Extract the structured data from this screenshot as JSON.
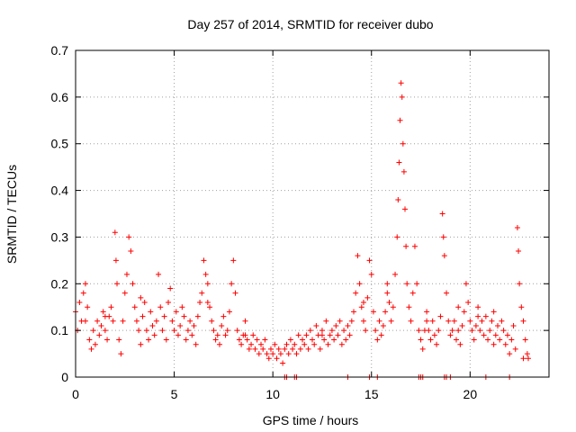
{
  "chart_data": {
    "type": "scatter",
    "title": "Day 257 of 2014, SRMTID for receiver dubo",
    "xlabel": "GPS time / hours",
    "ylabel": "SRMTID / TECUs",
    "xlim": [
      0,
      24
    ],
    "ylim": [
      0,
      0.7
    ],
    "xticks": [
      0,
      5,
      10,
      15,
      20
    ],
    "yticks": [
      0,
      0.1,
      0.2,
      0.3,
      0.4,
      0.5,
      0.6,
      0.7
    ],
    "xtick_labels": [
      "0",
      "5",
      "10",
      "15",
      "20"
    ],
    "ytick_labels": [
      "0",
      "0.1",
      "0.2",
      "0.3",
      "0.4",
      "0.5",
      "0.6",
      "0.7"
    ],
    "grid": true,
    "marker": "+",
    "color": "#ff0000",
    "series": [
      {
        "name": "SRMTID",
        "points": [
          [
            0.0,
            0.14
          ],
          [
            0.1,
            0.1
          ],
          [
            0.2,
            0.16
          ],
          [
            0.3,
            0.12
          ],
          [
            0.4,
            0.18
          ],
          [
            0.5,
            0.2
          ],
          [
            0.6,
            0.15
          ],
          [
            0.7,
            0.08
          ],
          [
            0.8,
            0.06
          ],
          [
            0.9,
            0.1
          ],
          [
            1.0,
            0.07
          ],
          [
            1.1,
            0.12
          ],
          [
            1.2,
            0.09
          ],
          [
            1.3,
            0.11
          ],
          [
            1.4,
            0.14
          ],
          [
            1.5,
            0.1
          ],
          [
            1.6,
            0.08
          ],
          [
            1.7,
            0.13
          ],
          [
            1.8,
            0.15
          ],
          [
            1.9,
            0.12
          ],
          [
            2.0,
            0.31
          ],
          [
            2.05,
            0.25
          ],
          [
            2.1,
            0.2
          ],
          [
            2.2,
            0.08
          ],
          [
            2.3,
            0.05
          ],
          [
            2.4,
            0.12
          ],
          [
            2.5,
            0.18
          ],
          [
            2.6,
            0.22
          ],
          [
            2.7,
            0.3
          ],
          [
            2.8,
            0.27
          ],
          [
            2.9,
            0.2
          ],
          [
            3.0,
            0.15
          ],
          [
            3.1,
            0.12
          ],
          [
            3.2,
            0.1
          ],
          [
            3.3,
            0.07
          ],
          [
            3.4,
            0.13
          ],
          [
            3.5,
            0.16
          ],
          [
            3.6,
            0.1
          ],
          [
            3.7,
            0.08
          ],
          [
            3.8,
            0.14
          ],
          [
            3.9,
            0.11
          ],
          [
            4.0,
            0.09
          ],
          [
            4.1,
            0.12
          ],
          [
            4.2,
            0.22
          ],
          [
            4.3,
            0.15
          ],
          [
            4.4,
            0.1
          ],
          [
            4.5,
            0.13
          ],
          [
            4.6,
            0.08
          ],
          [
            4.7,
            0.16
          ],
          [
            4.8,
            0.19
          ],
          [
            4.9,
            0.12
          ],
          [
            5.0,
            0.1
          ],
          [
            5.1,
            0.14
          ],
          [
            5.2,
            0.09
          ],
          [
            5.3,
            0.11
          ],
          [
            5.4,
            0.15
          ],
          [
            5.5,
            0.13
          ],
          [
            5.6,
            0.08
          ],
          [
            5.7,
            0.1
          ],
          [
            5.8,
            0.12
          ],
          [
            5.9,
            0.09
          ],
          [
            6.0,
            0.11
          ],
          [
            6.1,
            0.07
          ],
          [
            6.2,
            0.13
          ],
          [
            6.3,
            0.16
          ],
          [
            6.4,
            0.18
          ],
          [
            6.5,
            0.25
          ],
          [
            6.6,
            0.22
          ],
          [
            6.7,
            0.2
          ],
          [
            6.8,
            0.15
          ],
          [
            6.9,
            0.12
          ],
          [
            7.0,
            0.1
          ],
          [
            7.1,
            0.08
          ],
          [
            7.2,
            0.09
          ],
          [
            7.3,
            0.07
          ],
          [
            7.4,
            0.11
          ],
          [
            7.5,
            0.13
          ],
          [
            7.6,
            0.09
          ],
          [
            7.7,
            0.1
          ],
          [
            7.8,
            0.14
          ],
          [
            7.9,
            0.2
          ],
          [
            8.0,
            0.25
          ],
          [
            8.1,
            0.18
          ],
          [
            8.2,
            0.1
          ],
          [
            8.3,
            0.08
          ],
          [
            8.4,
            0.07
          ],
          [
            8.5,
            0.09
          ],
          [
            8.6,
            0.12
          ],
          [
            8.7,
            0.08
          ],
          [
            8.8,
            0.06
          ],
          [
            8.9,
            0.07
          ],
          [
            9.0,
            0.09
          ],
          [
            9.1,
            0.06
          ],
          [
            9.2,
            0.08
          ],
          [
            9.3,
            0.05
          ],
          [
            9.4,
            0.07
          ],
          [
            9.5,
            0.06
          ],
          [
            9.6,
            0.08
          ],
          [
            9.7,
            0.05
          ],
          [
            9.8,
            0.04
          ],
          [
            9.9,
            0.06
          ],
          [
            10.0,
            0.05
          ],
          [
            10.1,
            0.07
          ],
          [
            10.2,
            0.04
          ],
          [
            10.3,
            0.06
          ],
          [
            10.4,
            0.05
          ],
          [
            10.5,
            0.03
          ],
          [
            10.6,
            0.06
          ],
          [
            10.7,
            0.07
          ],
          [
            10.8,
            0.05
          ],
          [
            10.9,
            0.08
          ],
          [
            11.0,
            0.06
          ],
          [
            11.1,
            0.07
          ],
          [
            11.2,
            0.05
          ],
          [
            11.3,
            0.09
          ],
          [
            11.4,
            0.06
          ],
          [
            11.5,
            0.08
          ],
          [
            11.6,
            0.07
          ],
          [
            11.7,
            0.09
          ],
          [
            11.8,
            0.06
          ],
          [
            11.9,
            0.1
          ],
          [
            12.0,
            0.08
          ],
          [
            12.1,
            0.07
          ],
          [
            12.2,
            0.11
          ],
          [
            12.3,
            0.09
          ],
          [
            12.4,
            0.06
          ],
          [
            12.5,
            0.1
          ],
          [
            12.6,
            0.08
          ],
          [
            12.7,
            0.12
          ],
          [
            12.8,
            0.07
          ],
          [
            12.9,
            0.09
          ],
          [
            13.0,
            0.1
          ],
          [
            13.1,
            0.08
          ],
          [
            13.2,
            0.11
          ],
          [
            13.3,
            0.09
          ],
          [
            13.4,
            0.12
          ],
          [
            13.5,
            0.07
          ],
          [
            13.6,
            0.1
          ],
          [
            13.7,
            0.08
          ],
          [
            13.8,
            0.11
          ],
          [
            13.9,
            0.09
          ],
          [
            14.0,
            0.12
          ],
          [
            14.1,
            0.14
          ],
          [
            14.2,
            0.18
          ],
          [
            14.3,
            0.26
          ],
          [
            14.4,
            0.2
          ],
          [
            14.5,
            0.15
          ],
          [
            14.6,
            0.12
          ],
          [
            14.7,
            0.1
          ],
          [
            14.8,
            0.17
          ],
          [
            14.9,
            0.25
          ],
          [
            15.0,
            0.22
          ],
          [
            15.1,
            0.14
          ],
          [
            15.2,
            0.1
          ],
          [
            15.3,
            0.08
          ],
          [
            15.4,
            0.12
          ],
          [
            15.5,
            0.09
          ],
          [
            15.6,
            0.11
          ],
          [
            15.7,
            0.14
          ],
          [
            15.8,
            0.2
          ],
          [
            15.9,
            0.16
          ],
          [
            16.0,
            0.12
          ],
          [
            16.1,
            0.15
          ],
          [
            16.2,
            0.22
          ],
          [
            16.3,
            0.3
          ],
          [
            16.35,
            0.38
          ],
          [
            16.4,
            0.46
          ],
          [
            16.45,
            0.55
          ],
          [
            16.5,
            0.63
          ],
          [
            16.55,
            0.6
          ],
          [
            16.6,
            0.5
          ],
          [
            16.65,
            0.44
          ],
          [
            16.7,
            0.36
          ],
          [
            16.75,
            0.28
          ],
          [
            16.8,
            0.2
          ],
          [
            16.9,
            0.15
          ],
          [
            17.0,
            0.12
          ],
          [
            17.1,
            0.18
          ],
          [
            17.2,
            0.28
          ],
          [
            17.3,
            0.2
          ],
          [
            17.4,
            0.1
          ],
          [
            17.5,
            0.08
          ],
          [
            17.6,
            0.06
          ],
          [
            17.7,
            0.1
          ],
          [
            17.8,
            0.14
          ],
          [
            17.9,
            0.1
          ],
          [
            18.0,
            0.08
          ],
          [
            18.1,
            0.12
          ],
          [
            18.2,
            0.09
          ],
          [
            18.3,
            0.07
          ],
          [
            18.4,
            0.1
          ],
          [
            18.5,
            0.13
          ],
          [
            18.6,
            0.35
          ],
          [
            18.65,
            0.3
          ],
          [
            18.7,
            0.26
          ],
          [
            18.8,
            0.18
          ],
          [
            18.9,
            0.12
          ],
          [
            19.0,
            0.09
          ],
          [
            19.1,
            0.1
          ],
          [
            19.2,
            0.12
          ],
          [
            19.3,
            0.08
          ],
          [
            19.4,
            0.1
          ],
          [
            19.5,
            0.07
          ],
          [
            19.6,
            0.11
          ],
          [
            19.7,
            0.14
          ],
          [
            19.8,
            0.2
          ],
          [
            19.9,
            0.16
          ],
          [
            20.0,
            0.12
          ],
          [
            20.1,
            0.1
          ],
          [
            20.2,
            0.08
          ],
          [
            20.3,
            0.11
          ],
          [
            20.4,
            0.15
          ],
          [
            20.5,
            0.1
          ],
          [
            20.6,
            0.12
          ],
          [
            20.7,
            0.09
          ],
          [
            20.8,
            0.13
          ],
          [
            20.9,
            0.08
          ],
          [
            21.0,
            0.1
          ],
          [
            21.1,
            0.12
          ],
          [
            21.2,
            0.07
          ],
          [
            21.3,
            0.09
          ],
          [
            21.4,
            0.11
          ],
          [
            21.5,
            0.08
          ],
          [
            21.6,
            0.12
          ],
          [
            21.7,
            0.1
          ],
          [
            21.8,
            0.07
          ],
          [
            21.9,
            0.09
          ],
          [
            22.0,
            0.05
          ],
          [
            22.1,
            0.08
          ],
          [
            22.2,
            0.11
          ],
          [
            22.3,
            0.06
          ],
          [
            22.4,
            0.32
          ],
          [
            22.45,
            0.27
          ],
          [
            22.5,
            0.2
          ],
          [
            22.6,
            0.15
          ],
          [
            22.7,
            0.12
          ],
          [
            22.8,
            0.08
          ],
          [
            22.9,
            0.05
          ],
          [
            22.95,
            0.04
          ],
          [
            22.7,
            0.04
          ],
          [
            0.5,
            0.12
          ],
          [
            1.5,
            0.13
          ],
          [
            3.3,
            0.17
          ],
          [
            6.7,
            0.16
          ],
          [
            8.6,
            0.09
          ],
          [
            12.5,
            0.09
          ],
          [
            14.6,
            0.16
          ],
          [
            15.8,
            0.18
          ],
          [
            17.8,
            0.12
          ],
          [
            19.4,
            0.15
          ],
          [
            20.4,
            0.13
          ],
          [
            21.2,
            0.14
          ],
          [
            10.6,
            0.0
          ],
          [
            10.7,
            0.0
          ],
          [
            11.1,
            0.0
          ],
          [
            11.2,
            0.0
          ],
          [
            13.8,
            0.0
          ],
          [
            14.9,
            0.0
          ],
          [
            15.3,
            0.0
          ],
          [
            17.4,
            0.0
          ],
          [
            17.5,
            0.0
          ],
          [
            17.6,
            0.0
          ],
          [
            18.7,
            0.0
          ],
          [
            18.8,
            0.0
          ],
          [
            19.0,
            0.0
          ],
          [
            20.8,
            0.0
          ],
          [
            22.0,
            0.0
          ]
        ]
      }
    ]
  }
}
